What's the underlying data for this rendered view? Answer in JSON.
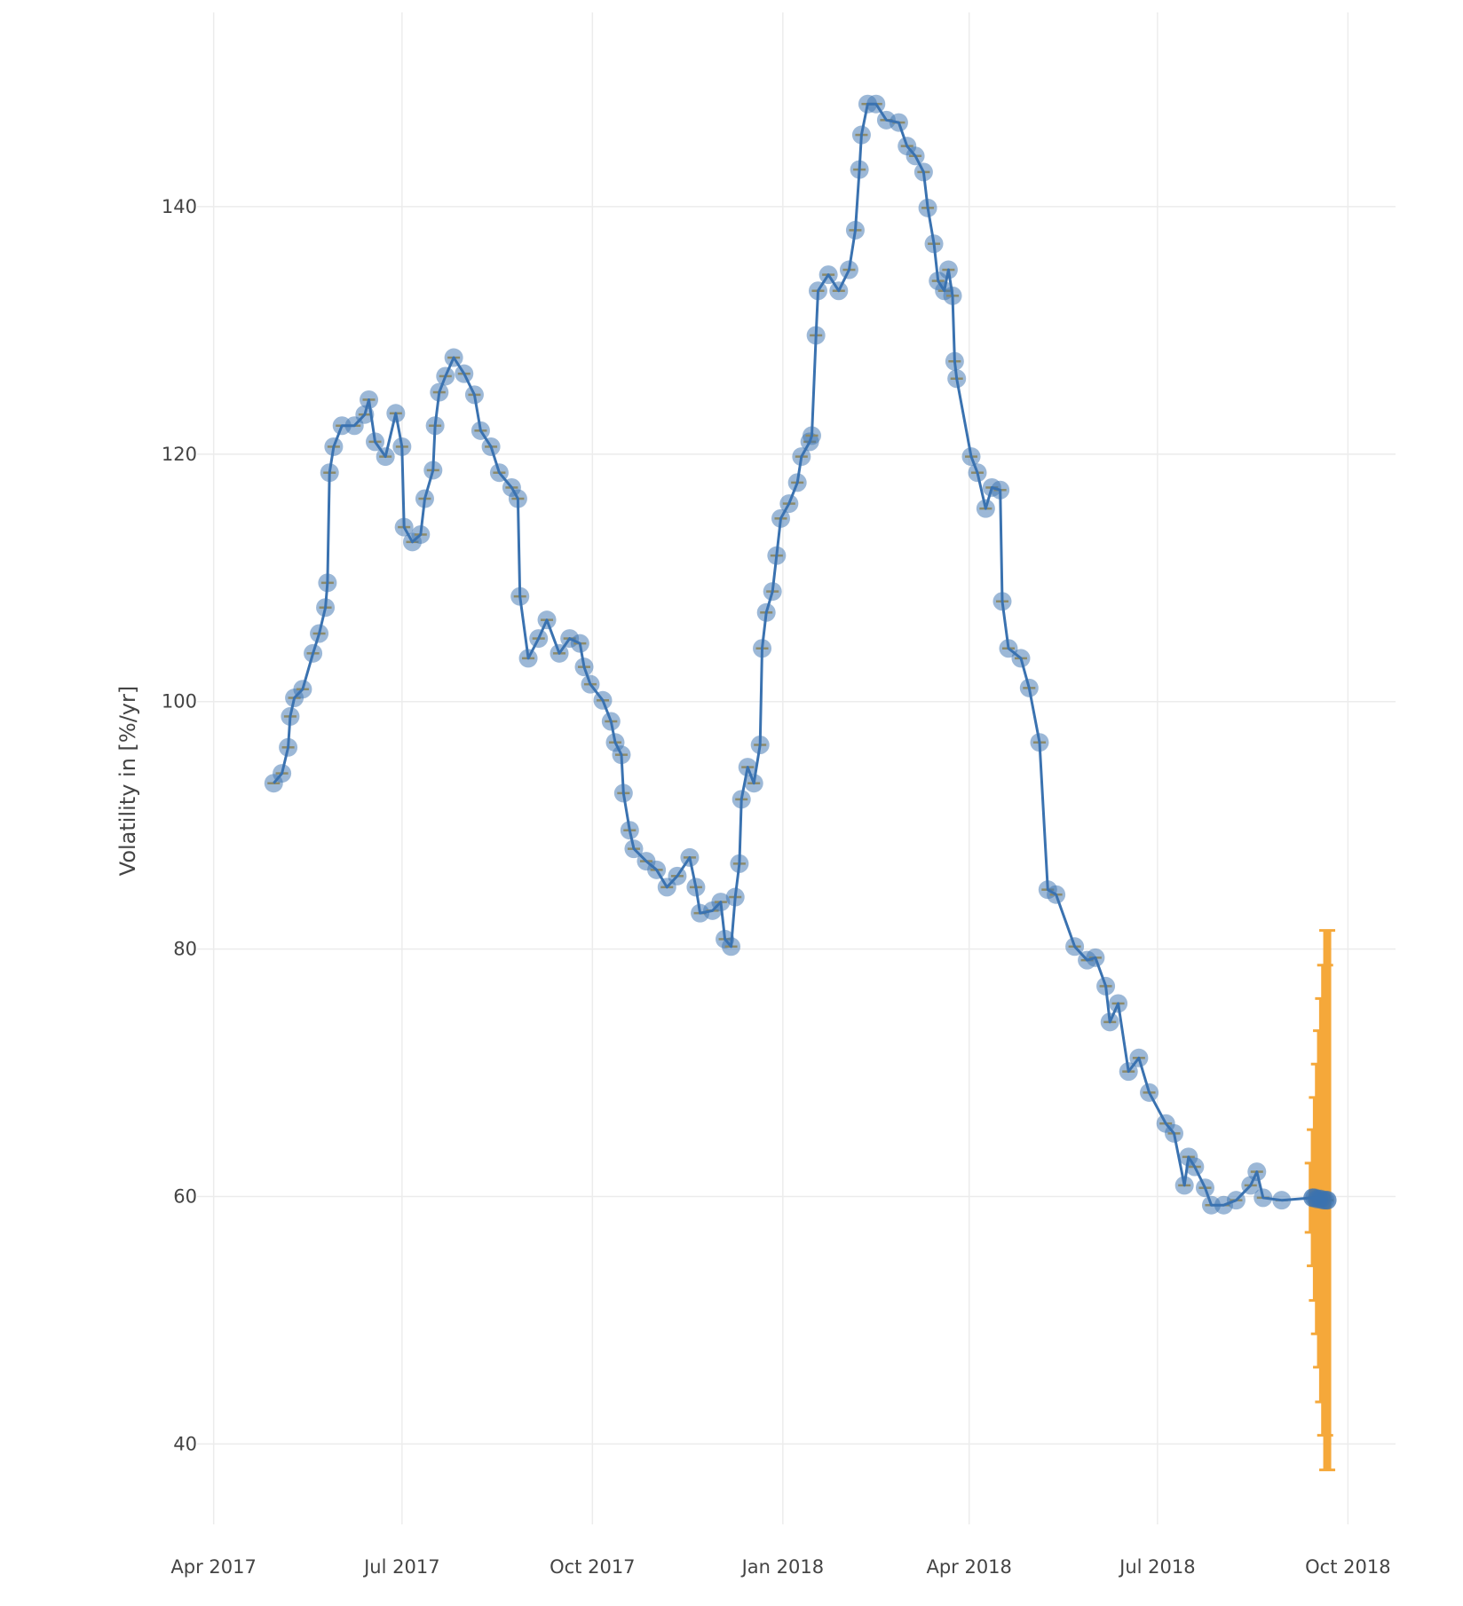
{
  "chart_data": {
    "type": "scatter",
    "title": "",
    "xlabel": "",
    "ylabel": "Volatility in [%/yr]",
    "x_type": "date",
    "xlim": [
      "2017-03-24",
      "2018-10-24"
    ],
    "ylim": [
      33.5,
      155.7
    ],
    "grid": true,
    "legend": "none",
    "x_ticks": [
      {
        "date": "2017-04-01",
        "label": "Apr 2017"
      },
      {
        "date": "2017-07-01",
        "label": "Jul 2017"
      },
      {
        "date": "2017-10-01",
        "label": "Oct 2017"
      },
      {
        "date": "2018-01-01",
        "label": "Jan 2018"
      },
      {
        "date": "2018-04-01",
        "label": "Apr 2018"
      },
      {
        "date": "2018-07-01",
        "label": "Jul 2018"
      },
      {
        "date": "2018-10-01",
        "label": "Oct 2018"
      }
    ],
    "y_ticks": [
      40,
      60,
      80,
      100,
      120,
      140
    ],
    "colors": {
      "history": "#3a72b0",
      "history_marker": "rgba(58,114,176,0.5)",
      "history_error": "#8c8a6a",
      "forecast": "#f5a83a",
      "grid": "#ececec"
    },
    "series": [
      {
        "role": "history",
        "mode": "lines+markers",
        "x": [
          "2017-04-30",
          "2017-05-04",
          "2017-05-07",
          "2017-05-08",
          "2017-05-10",
          "2017-05-14",
          "2017-05-19",
          "2017-05-22",
          "2017-05-25",
          "2017-05-26",
          "2017-05-27",
          "2017-05-29",
          "2017-06-02",
          "2017-06-08",
          "2017-06-13",
          "2017-06-15",
          "2017-06-18",
          "2017-06-23",
          "2017-06-28",
          "2017-07-01",
          "2017-07-02",
          "2017-07-06",
          "2017-07-10",
          "2017-07-12",
          "2017-07-16",
          "2017-07-17",
          "2017-07-19",
          "2017-07-22",
          "2017-07-26",
          "2017-07-31",
          "2017-08-05",
          "2017-08-08",
          "2017-08-13",
          "2017-08-17",
          "2017-08-23",
          "2017-08-26",
          "2017-08-27",
          "2017-08-31",
          "2017-09-05",
          "2017-09-09",
          "2017-09-15",
          "2017-09-20",
          "2017-09-25",
          "2017-09-27",
          "2017-09-30",
          "2017-10-06",
          "2017-10-10",
          "2017-10-12",
          "2017-10-15",
          "2017-10-16",
          "2017-10-19",
          "2017-10-21",
          "2017-10-27",
          "2017-11-01",
          "2017-11-06",
          "2017-11-11",
          "2017-11-17",
          "2017-11-20",
          "2017-11-22",
          "2017-11-28",
          "2017-12-02",
          "2017-12-04",
          "2017-12-07",
          "2017-12-09",
          "2017-12-11",
          "2017-12-12",
          "2017-12-15",
          "2017-12-18",
          "2017-12-21",
          "2017-12-22",
          "2017-12-24",
          "2017-12-27",
          "2017-12-29",
          "2017-12-31",
          "2018-01-04",
          "2018-01-08",
          "2018-01-10",
          "2018-01-14",
          "2018-01-15",
          "2018-01-17",
          "2018-01-18",
          "2018-01-23",
          "2018-01-28",
          "2018-02-02",
          "2018-02-05",
          "2018-02-07",
          "2018-02-08",
          "2018-02-11",
          "2018-02-15",
          "2018-02-20",
          "2018-02-26",
          "2018-03-02",
          "2018-03-06",
          "2018-03-10",
          "2018-03-12",
          "2018-03-15",
          "2018-03-17",
          "2018-03-20",
          "2018-03-22",
          "2018-03-24",
          "2018-03-25",
          "2018-03-26",
          "2018-04-02",
          "2018-04-05",
          "2018-04-09",
          "2018-04-12",
          "2018-04-16",
          "2018-04-17",
          "2018-04-20",
          "2018-04-26",
          "2018-04-30",
          "2018-05-05",
          "2018-05-09",
          "2018-05-13",
          "2018-05-22",
          "2018-05-28",
          "2018-06-01",
          "2018-06-06",
          "2018-06-08",
          "2018-06-12",
          "2018-06-17",
          "2018-06-22",
          "2018-06-27",
          "2018-07-05",
          "2018-07-09",
          "2018-07-14",
          "2018-07-16",
          "2018-07-19",
          "2018-07-24",
          "2018-07-27",
          "2018-08-02",
          "2018-08-08",
          "2018-08-15",
          "2018-08-18",
          "2018-08-21",
          "2018-08-30",
          "2018-09-14",
          "2018-09-21"
        ],
        "y": [
          93.4,
          94.2,
          96.3,
          98.8,
          100.3,
          101,
          103.9,
          105.5,
          107.6,
          109.6,
          118.5,
          120.6,
          122.3,
          122.3,
          123.2,
          124.4,
          121,
          119.8,
          123.3,
          120.6,
          114.1,
          112.9,
          113.5,
          116.4,
          118.7,
          122.3,
          125,
          126.3,
          127.8,
          126.5,
          124.8,
          121.9,
          120.6,
          118.5,
          117.3,
          116.4,
          108.5,
          103.5,
          105.1,
          106.6,
          103.9,
          105.1,
          104.7,
          102.8,
          101.4,
          100.1,
          98.4,
          96.7,
          95.7,
          92.6,
          89.6,
          88.1,
          87.1,
          86.4,
          85,
          85.9,
          87.4,
          85,
          82.9,
          83.1,
          83.8,
          80.8,
          80.2,
          84.2,
          86.9,
          92.1,
          94.7,
          93.4,
          96.5,
          104.3,
          107.2,
          108.9,
          111.8,
          114.8,
          116,
          117.7,
          119.8,
          121,
          121.5,
          129.6,
          133.2,
          134.5,
          133.2,
          134.9,
          138.1,
          143,
          145.8,
          148.3,
          148.3,
          147,
          146.8,
          144.9,
          144.1,
          142.8,
          139.9,
          137,
          134,
          133.2,
          134.9,
          132.8,
          127.5,
          126.1,
          119.8,
          118.5,
          115.6,
          117.3,
          117.1,
          108.1,
          104.3,
          103.5,
          101.1,
          96.7,
          84.8,
          84.4,
          80.2,
          79.1,
          79.3,
          77,
          74.1,
          75.6,
          70.1,
          71.2,
          68.4,
          65.9,
          65.1,
          60.9,
          63.2,
          62.4,
          60.7,
          59.3,
          59.3,
          59.7,
          60.9,
          62,
          59.9,
          59.7,
          59.9,
          59.7
        ]
      },
      {
        "role": "forecast",
        "mode": "markers+error_bars",
        "x": [
          "2018-09-14",
          "2018-09-15",
          "2018-09-16",
          "2018-09-17",
          "2018-09-18",
          "2018-09-19",
          "2018-09-20",
          "2018-09-21"
        ],
        "y": [
          59.9,
          59.9,
          59.8,
          59.8,
          59.8,
          59.7,
          59.7,
          59.7
        ],
        "error": [
          2.8,
          5.5,
          8.2,
          10.9,
          13.6,
          16.3,
          19.0,
          21.8
        ]
      }
    ]
  }
}
